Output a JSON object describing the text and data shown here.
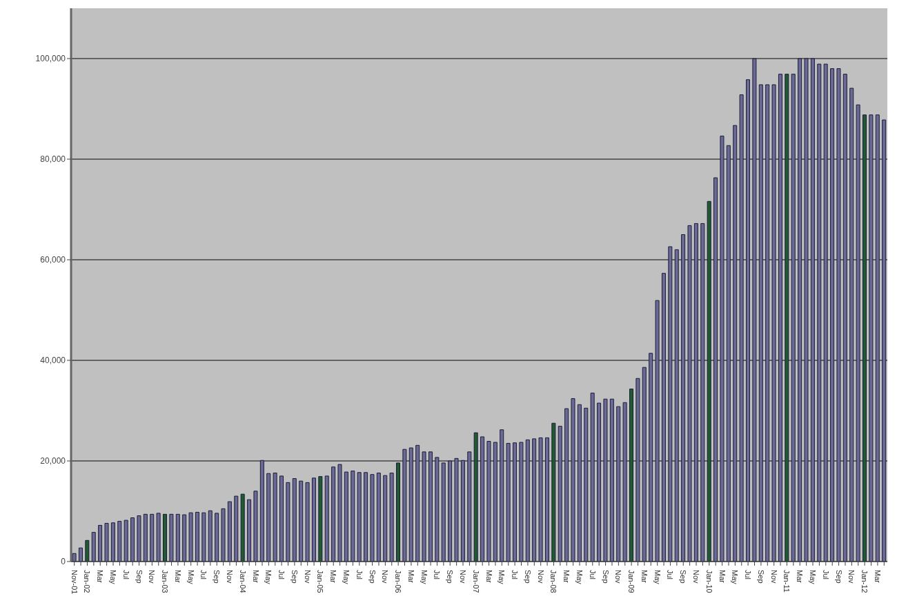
{
  "chart_data": {
    "type": "bar",
    "categories": [
      "Nov-01",
      null,
      "Jan-02",
      null,
      "Mar",
      null,
      "May",
      null,
      "Jul",
      null,
      "Sep",
      null,
      "Nov",
      null,
      "Jan-03",
      null,
      "Mar",
      null,
      "May",
      null,
      "Jul",
      null,
      "Sep",
      null,
      "Nov",
      null,
      "Jan-04",
      null,
      "Mar",
      null,
      "May",
      null,
      "Jul",
      null,
      "Sep",
      null,
      "Nov",
      null,
      "Jan-05",
      null,
      "Mar",
      null,
      "May",
      null,
      "Jul",
      null,
      "Sep",
      null,
      "Nov",
      null,
      "Jan-06",
      null,
      "Mar",
      null,
      "May",
      null,
      "Jul",
      null,
      "Sep",
      null,
      "Nov",
      null,
      "Jan-07",
      null,
      "Mar",
      null,
      "May",
      null,
      "Jul",
      null,
      "Sep",
      null,
      "Nov",
      null,
      "Jan-08",
      null,
      "Mar",
      null,
      "May",
      null,
      "Jul",
      null,
      "Sep",
      null,
      "Nov",
      null,
      "Jan-09",
      null,
      "Mar",
      null,
      "May",
      null,
      "Jul",
      null,
      "Sep",
      null,
      "Nov",
      null,
      "Jan-10",
      null,
      "Mar",
      null,
      "May",
      null,
      "Jul",
      null,
      "Sep",
      null,
      "Nov",
      null,
      "Jan-11",
      null,
      "Mar",
      null,
      "May",
      null,
      "Jul",
      null,
      "Sep",
      null,
      "Nov",
      null,
      "Jan-12",
      null,
      "Mar",
      null
    ],
    "values": [
      1600,
      2700,
      4200,
      5800,
      7200,
      7600,
      7700,
      8000,
      8200,
      8700,
      9100,
      9400,
      9400,
      9600,
      9400,
      9400,
      9400,
      9300,
      9700,
      9800,
      9700,
      10100,
      9600,
      10500,
      11900,
      13000,
      13400,
      12300,
      14000,
      20100,
      17500,
      17600,
      17000,
      15700,
      16500,
      16000,
      15700,
      16600,
      16900,
      17000,
      18800,
      19300,
      17800,
      18000,
      17700,
      17700,
      17300,
      17600,
      17100,
      17600,
      19600,
      22300,
      22600,
      23100,
      21800,
      21800,
      20700,
      19600,
      20000,
      20500,
      20100,
      21800,
      25600,
      24800,
      23900,
      23700,
      26200,
      23500,
      23600,
      23700,
      24200,
      24400,
      24600,
      24600,
      27500,
      26900,
      30400,
      32400,
      31200,
      30500,
      33500,
      31500,
      32300,
      32300,
      30800,
      31600,
      34300,
      36400,
      38600,
      41400,
      51900,
      57300,
      62600,
      62000,
      65000,
      66800,
      67200,
      67200,
      71600,
      76300,
      84600,
      82700,
      86700,
      92800,
      95800,
      100000,
      94800,
      94800,
      94800,
      96900,
      96900,
      96900,
      100000,
      100000,
      100000,
      98900,
      98900,
      98000,
      98000,
      96900,
      94100,
      90800,
      88800,
      88800,
      88800,
      87800
    ],
    "colors": [
      "#6a6a94",
      "#6a6a94",
      "#1f5a30",
      "#6a6a94",
      "#6a6a94",
      "#6a6a94",
      "#6a6a94",
      "#6a6a94",
      "#6a6a94",
      "#6a6a94",
      "#6a6a94",
      "#6a6a94",
      "#6a6a94",
      "#6a6a94",
      "#1f5a30",
      "#6a6a94",
      "#6a6a94",
      "#6a6a94",
      "#6a6a94",
      "#6a6a94",
      "#6a6a94",
      "#6a6a94",
      "#6a6a94",
      "#6a6a94",
      "#6a6a94",
      "#6a6a94",
      "#1f5a30",
      "#6a6a94",
      "#6a6a94",
      "#6a6a94",
      "#6a6a94",
      "#6a6a94",
      "#6a6a94",
      "#6a6a94",
      "#6a6a94",
      "#6a6a94",
      "#6a6a94",
      "#6a6a94",
      "#1f5a30",
      "#6a6a94",
      "#6a6a94",
      "#6a6a94",
      "#6a6a94",
      "#6a6a94",
      "#6a6a94",
      "#6a6a94",
      "#6a6a94",
      "#6a6a94",
      "#6a6a94",
      "#6a6a94",
      "#1f5a30",
      "#6a6a94",
      "#6a6a94",
      "#6a6a94",
      "#6a6a94",
      "#6a6a94",
      "#6a6a94",
      "#6a6a94",
      "#6a6a94",
      "#6a6a94",
      "#6a6a94",
      "#6a6a94",
      "#1f5a30",
      "#6a6a94",
      "#6a6a94",
      "#6a6a94",
      "#6a6a94",
      "#6a6a94",
      "#6a6a94",
      "#6a6a94",
      "#6a6a94",
      "#6a6a94",
      "#6a6a94",
      "#6a6a94",
      "#1f5a30",
      "#6a6a94",
      "#6a6a94",
      "#6a6a94",
      "#6a6a94",
      "#6a6a94",
      "#6a6a94",
      "#6a6a94",
      "#6a6a94",
      "#6a6a94",
      "#6a6a94",
      "#6a6a94",
      "#1f5a30",
      "#6a6a94",
      "#6a6a94",
      "#6a6a94",
      "#6a6a94",
      "#6a6a94",
      "#6a6a94",
      "#6a6a94",
      "#6a6a94",
      "#6a6a94",
      "#6a6a94",
      "#6a6a94",
      "#1f5a30",
      "#6a6a94",
      "#6a6a94",
      "#6a6a94",
      "#6a6a94",
      "#6a6a94",
      "#6a6a94",
      "#6a6a94",
      "#6a6a94",
      "#6a6a94",
      "#6a6a94",
      "#6a6a94",
      "#1f5a30",
      "#6a6a94",
      "#6a6a94",
      "#6a6a94",
      "#6a6a94",
      "#6a6a94",
      "#6a6a94",
      "#6a6a94",
      "#6a6a94",
      "#6a6a94",
      "#6a6a94",
      "#6a6a94",
      "#1f5a30",
      "#6a6a94",
      "#6a6a94",
      "#6a6a94"
    ],
    "ylim": [
      0,
      110000
    ],
    "yticks": [
      0,
      {
        "value": 20000,
        "label": "20,000"
      },
      {
        "value": 40000,
        "label": "40,000"
      },
      {
        "value": 60000,
        "label": "60,000"
      },
      {
        "value": 80000,
        "label": "80,000"
      },
      {
        "value": 100000,
        "label": "100,000"
      }
    ],
    "grid": "y",
    "legend": false
  }
}
